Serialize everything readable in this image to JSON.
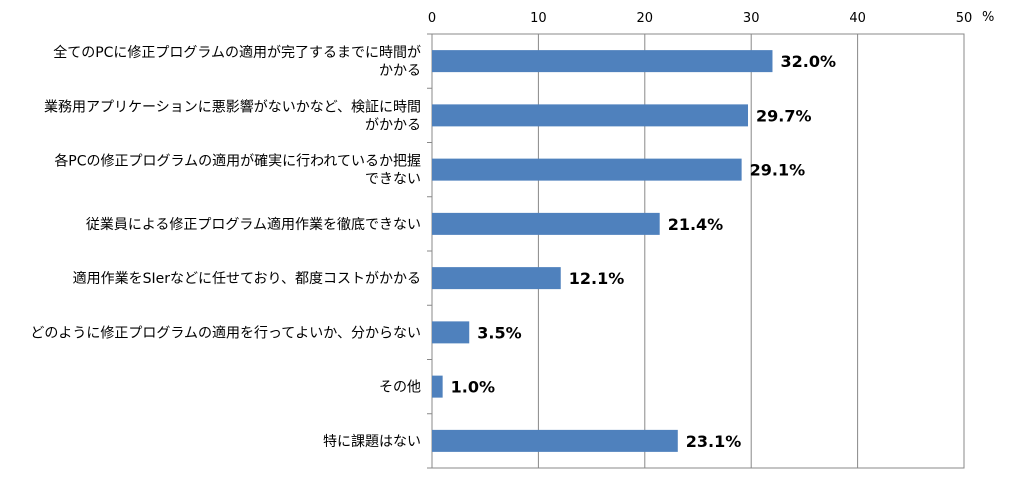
{
  "chart_data": {
    "type": "bar",
    "orientation": "horizontal",
    "title": "",
    "xlabel": "",
    "ylabel": "",
    "unit": "%",
    "xlim": [
      0,
      50
    ],
    "ticks": [
      "0",
      "10",
      "20",
      "30",
      "40",
      "50"
    ],
    "grid": true,
    "legend": "none",
    "bar_color": "#4F81BD",
    "categories": [
      [
        "全てのPCに修正プログラムの適用が完了するまでに時間が",
        "かかる"
      ],
      [
        "業務用アプリケーションに悪影響がないかなど、検証に時間",
        "がかかる"
      ],
      [
        "各PCの修正プログラムの適用が確実に行われているか把握",
        "できない"
      ],
      [
        "従業員による修正プログラム適用作業を徹底できない"
      ],
      [
        "適用作業をSIerなどに任せており、都度コストがかかる"
      ],
      [
        "どのように修正プログラムの適用を行ってよいか、分からない"
      ],
      [
        "その他"
      ],
      [
        "特に課題はない"
      ]
    ],
    "values": [
      32.0,
      29.7,
      29.1,
      21.4,
      12.1,
      3.5,
      1.0,
      23.1
    ],
    "value_labels": [
      "32.0%",
      "29.7%",
      "29.1%",
      "21.4%",
      "12.1%",
      "3.5%",
      "1.0%",
      "23.1%"
    ]
  }
}
